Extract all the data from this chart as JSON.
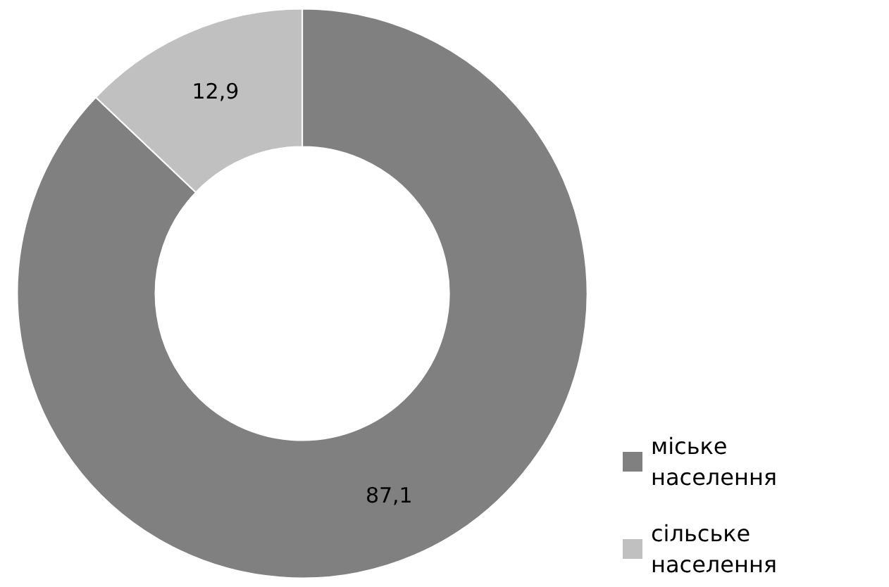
{
  "chart_data": {
    "type": "donut",
    "categories": [
      "міське населення",
      "сільське населення"
    ],
    "values": [
      87.1,
      12.9
    ],
    "colors": [
      "#808080",
      "#c0c0c0"
    ],
    "value_labels": [
      "87,1",
      "12,9"
    ],
    "legend": "bottom right"
  }
}
